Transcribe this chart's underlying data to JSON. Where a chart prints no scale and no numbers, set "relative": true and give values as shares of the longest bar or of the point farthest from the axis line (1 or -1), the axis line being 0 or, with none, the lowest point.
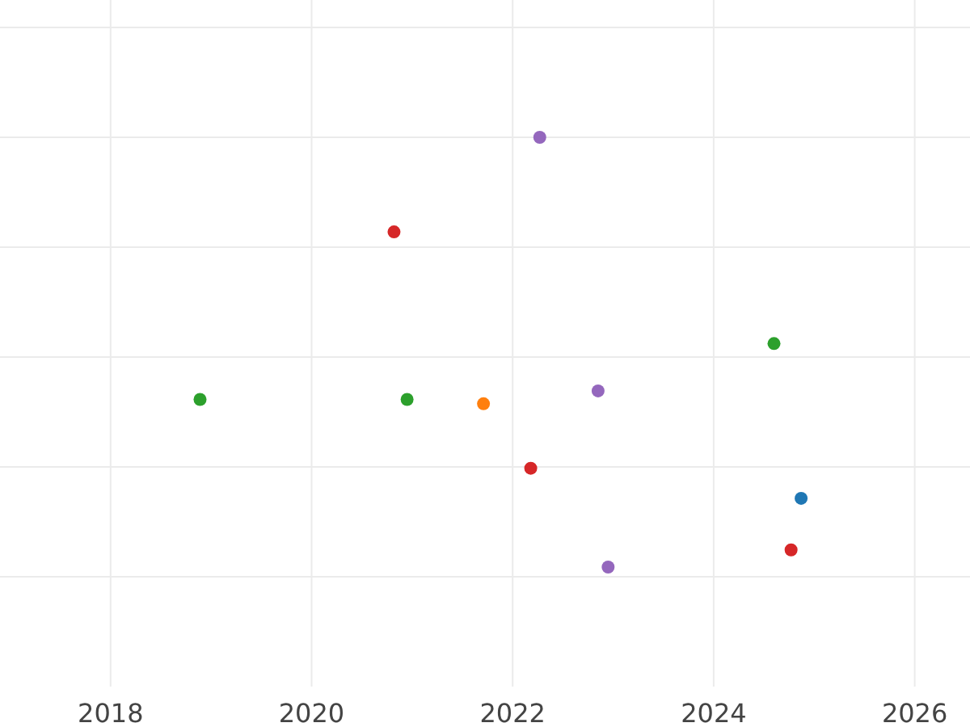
{
  "chart_data": {
    "type": "scatter",
    "relative": true,
    "xlim": [
      2016.9,
      2026.55
    ],
    "xticks": [
      2018,
      2020,
      2022,
      2024,
      2026
    ],
    "grid": true,
    "marker": "circle",
    "series": [
      {
        "color": "#9467bd",
        "x": [
          2022.27,
          2022.85,
          2022.95
        ],
        "values": [
          1,
          0.41,
          0
        ]
      },
      {
        "color": "#d62728",
        "x": [
          2020.82,
          2022.18,
          2024.77
        ],
        "values": [
          0.78,
          0.23,
          0.04
        ]
      },
      {
        "color": "#2ca02c",
        "x": [
          2024.6,
          2018.89,
          2020.95
        ],
        "values": [
          0.52,
          0.39,
          0.39
        ]
      },
      {
        "color": "#ff7f0e",
        "x": [
          2021.71
        ],
        "values": [
          0.38
        ]
      },
      {
        "color": "#1f77b4",
        "x": [
          2024.87
        ],
        "values": [
          0.16
        ]
      }
    ]
  }
}
